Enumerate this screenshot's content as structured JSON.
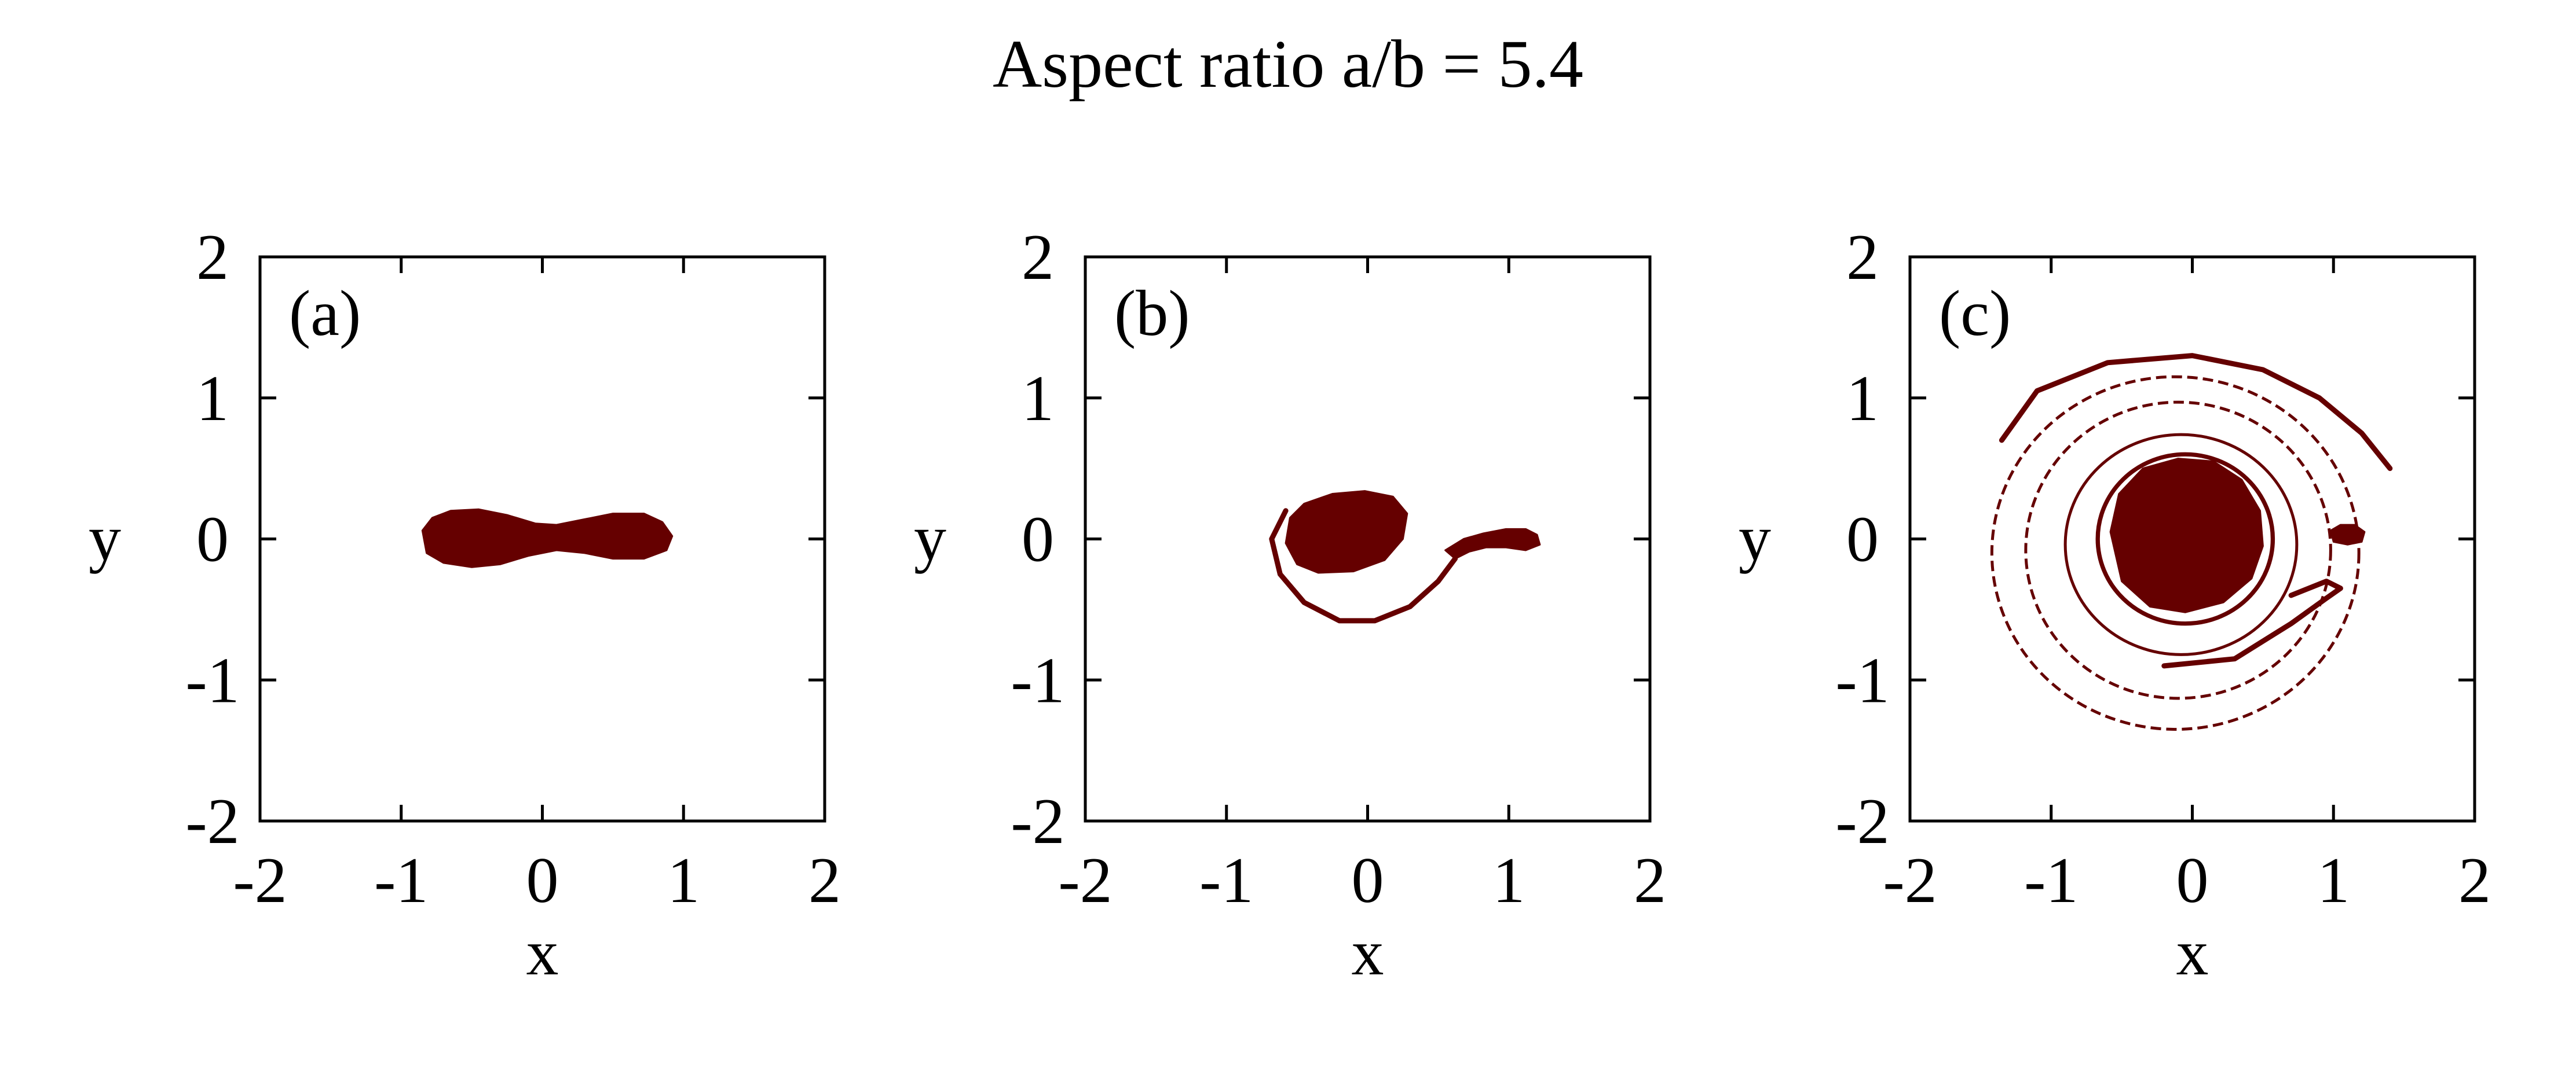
{
  "title": "Aspect ratio a/b = 5.4",
  "colors": {
    "fill": "#650000",
    "axis": "#000000",
    "background": "#ffffff"
  },
  "chart_data": [
    {
      "type": "scatter",
      "panel_label": "(a)",
      "xlabel": "x",
      "ylabel": "y",
      "xlim": [
        -2,
        2
      ],
      "ylim": [
        -2,
        2
      ],
      "xticks": [
        "-2",
        "-1",
        "0",
        "1",
        "2"
      ],
      "yticks": [
        "-2",
        "-1",
        "0",
        "1",
        "2"
      ],
      "grid": false,
      "shapes": [
        {
          "kind": "filled",
          "points": [
            [
              -0.85,
              0.06
            ],
            [
              -0.78,
              0.15
            ],
            [
              -0.65,
              0.2
            ],
            [
              -0.45,
              0.21
            ],
            [
              -0.25,
              0.17
            ],
            [
              -0.05,
              0.11
            ],
            [
              0.1,
              0.1
            ],
            [
              0.3,
              0.14
            ],
            [
              0.5,
              0.18
            ],
            [
              0.72,
              0.18
            ],
            [
              0.85,
              0.12
            ],
            [
              0.92,
              0.02
            ],
            [
              0.88,
              -0.08
            ],
            [
              0.72,
              -0.14
            ],
            [
              0.5,
              -0.14
            ],
            [
              0.3,
              -0.1
            ],
            [
              0.1,
              -0.08
            ],
            [
              -0.1,
              -0.12
            ],
            [
              -0.3,
              -0.18
            ],
            [
              -0.5,
              -0.2
            ],
            [
              -0.7,
              -0.17
            ],
            [
              -0.82,
              -0.1
            ]
          ]
        }
      ]
    },
    {
      "type": "scatter",
      "panel_label": "(b)",
      "xlabel": "x",
      "ylabel": "y",
      "xlim": [
        -2,
        2
      ],
      "ylim": [
        -2,
        2
      ],
      "xticks": [
        "-2",
        "-1",
        "0",
        "1",
        "2"
      ],
      "yticks": [
        "-2",
        "-1",
        "0",
        "1",
        "2"
      ],
      "grid": false,
      "shapes": [
        {
          "kind": "filled",
          "points": [
            [
              -0.55,
              0.15
            ],
            [
              -0.45,
              0.25
            ],
            [
              -0.25,
              0.32
            ],
            [
              -0.02,
              0.34
            ],
            [
              0.18,
              0.3
            ],
            [
              0.28,
              0.18
            ],
            [
              0.25,
              0.0
            ],
            [
              0.12,
              -0.15
            ],
            [
              -0.1,
              -0.23
            ],
            [
              -0.35,
              -0.24
            ],
            [
              -0.5,
              -0.18
            ],
            [
              -0.58,
              -0.03
            ]
          ]
        },
        {
          "kind": "filled",
          "points": [
            [
              0.55,
              -0.08
            ],
            [
              0.68,
              0.0
            ],
            [
              0.82,
              0.04
            ],
            [
              0.98,
              0.07
            ],
            [
              1.12,
              0.07
            ],
            [
              1.2,
              0.03
            ],
            [
              1.22,
              -0.04
            ],
            [
              1.12,
              -0.08
            ],
            [
              0.98,
              -0.06
            ],
            [
              0.84,
              -0.06
            ],
            [
              0.72,
              -0.09
            ],
            [
              0.62,
              -0.14
            ]
          ]
        },
        {
          "kind": "line",
          "points": [
            [
              -0.58,
              0.2
            ],
            [
              -0.68,
              0.0
            ],
            [
              -0.62,
              -0.25
            ],
            [
              -0.45,
              -0.45
            ],
            [
              -0.2,
              -0.58
            ],
            [
              0.05,
              -0.58
            ],
            [
              0.3,
              -0.48
            ],
            [
              0.5,
              -0.3
            ],
            [
              0.62,
              -0.14
            ]
          ]
        }
      ]
    },
    {
      "type": "scatter",
      "panel_label": "(c)",
      "xlabel": "x",
      "ylabel": "y",
      "xlim": [
        -2,
        2
      ],
      "ylim": [
        -2,
        2
      ],
      "xticks": [
        "-2",
        "-1",
        "0",
        "1",
        "2"
      ],
      "yticks": [
        "-2",
        "-1",
        "0",
        "1",
        "2"
      ],
      "grid": false,
      "shapes": [
        {
          "kind": "filled",
          "points": [
            [
              -0.58,
              0.05
            ],
            [
              -0.52,
              0.32
            ],
            [
              -0.35,
              0.5
            ],
            [
              -0.1,
              0.57
            ],
            [
              0.15,
              0.55
            ],
            [
              0.35,
              0.42
            ],
            [
              0.48,
              0.2
            ],
            [
              0.5,
              -0.05
            ],
            [
              0.42,
              -0.28
            ],
            [
              0.22,
              -0.45
            ],
            [
              -0.05,
              -0.52
            ],
            [
              -0.3,
              -0.48
            ],
            [
              -0.5,
              -0.3
            ]
          ]
        },
        {
          "kind": "ring",
          "cx": -0.05,
          "cy": 0.0,
          "rx": 0.62,
          "ry": 0.6,
          "width": 0.03
        },
        {
          "kind": "ring",
          "cx": -0.08,
          "cy": -0.04,
          "rx": 0.82,
          "ry": 0.78,
          "width": 0.015
        },
        {
          "kind": "ring",
          "cx": -0.1,
          "cy": -0.08,
          "rx": 1.08,
          "ry": 1.05,
          "width": 0.008
        },
        {
          "kind": "ring",
          "cx": -0.12,
          "cy": -0.1,
          "rx": 1.3,
          "ry": 1.25,
          "width": 0.006
        },
        {
          "kind": "filled",
          "points": [
            [
              0.98,
              0.06
            ],
            [
              1.05,
              0.1
            ],
            [
              1.15,
              0.1
            ],
            [
              1.22,
              0.05
            ],
            [
              1.2,
              -0.02
            ],
            [
              1.1,
              -0.04
            ],
            [
              1.0,
              -0.02
            ]
          ]
        },
        {
          "kind": "line",
          "points": [
            [
              -0.2,
              -0.9
            ],
            [
              0.3,
              -0.85
            ],
            [
              0.7,
              -0.6
            ],
            [
              0.95,
              -0.42
            ],
            [
              1.05,
              -0.35
            ],
            [
              0.95,
              -0.3
            ],
            [
              0.7,
              -0.4
            ]
          ]
        },
        {
          "kind": "line",
          "points": [
            [
              -1.35,
              0.7
            ],
            [
              -1.1,
              1.05
            ],
            [
              -0.6,
              1.25
            ],
            [
              0.0,
              1.3
            ],
            [
              0.5,
              1.2
            ],
            [
              0.9,
              1.0
            ],
            [
              1.2,
              0.75
            ],
            [
              1.4,
              0.5
            ]
          ]
        }
      ]
    }
  ]
}
